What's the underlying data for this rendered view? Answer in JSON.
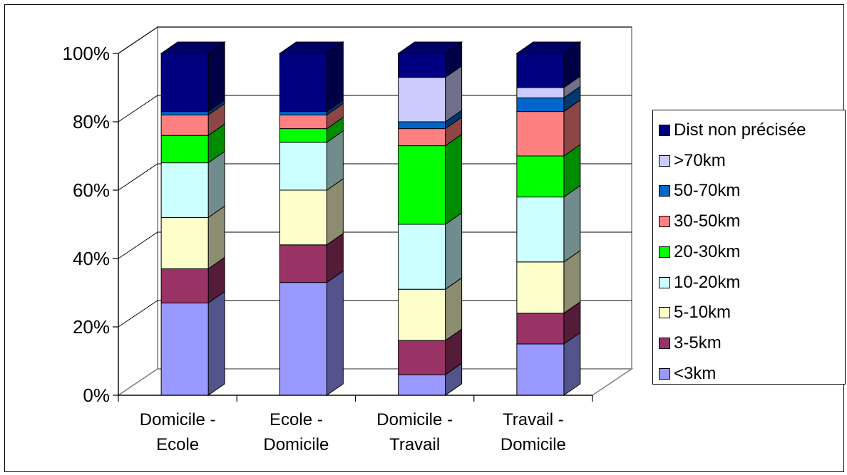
{
  "chart_data": {
    "type": "bar",
    "stacked": "percent",
    "projection": "3d",
    "categories": [
      [
        "Domicile -",
        "Ecole"
      ],
      [
        "Ecole -",
        "Domicile"
      ],
      [
        "Domicile -",
        "Travail"
      ],
      [
        "Travail -",
        "Domicile"
      ]
    ],
    "yticks": [
      "0%",
      "20%",
      "40%",
      "60%",
      "80%",
      "100%"
    ],
    "ylim": [
      0,
      100
    ],
    "grid": true,
    "legend_position": "right",
    "series": [
      {
        "name": "<3km",
        "color": "#9999ff",
        "values": [
          27,
          33,
          6,
          15
        ]
      },
      {
        "name": "3-5km",
        "color": "#993366",
        "values": [
          10,
          11,
          10,
          9
        ]
      },
      {
        "name": "5-10km",
        "color": "#ffffcc",
        "values": [
          15,
          16,
          15,
          15
        ]
      },
      {
        "name": "10-20km",
        "color": "#ccffff",
        "values": [
          16,
          14,
          19,
          19
        ]
      },
      {
        "name": "20-30km",
        "color": "#00ff00",
        "values": [
          8,
          4,
          23,
          12
        ]
      },
      {
        "name": "30-50km",
        "color": "#ff8080",
        "values": [
          6,
          4,
          5,
          13
        ]
      },
      {
        "name": "50-70km",
        "color": "#0066cc",
        "values": [
          1,
          1,
          2,
          4
        ]
      },
      {
        "name": ">70km",
        "color": "#ccccff",
        "values": [
          0,
          0,
          13,
          3
        ]
      },
      {
        "name": "Dist non précisée",
        "color": "#000080",
        "values": [
          17,
          17,
          7,
          10
        ]
      }
    ]
  }
}
